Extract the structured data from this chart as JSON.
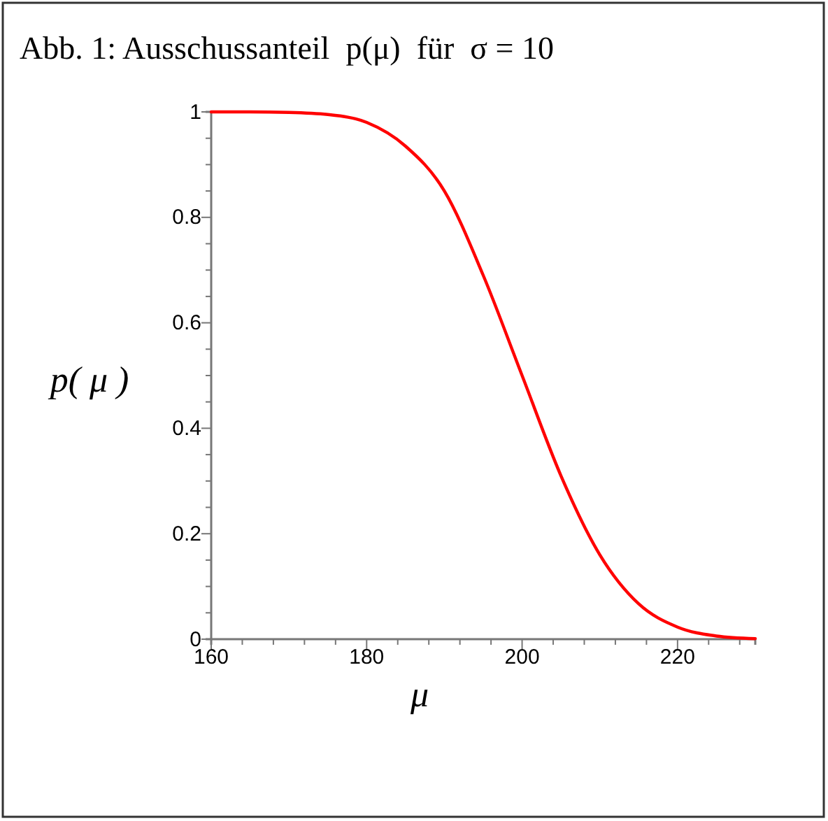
{
  "chart_data": {
    "type": "line",
    "title": "Abb. 1: Ausschussanteil  p(μ)  für  σ = 10",
    "xlabel": "μ",
    "ylabel": "p( μ )",
    "x": [
      160,
      165,
      170,
      175,
      180,
      185,
      190,
      195,
      200,
      205,
      210,
      215,
      220,
      225,
      230
    ],
    "series": [
      {
        "color": "#ff0000",
        "values": [
          1,
          1,
          0.999,
          0.995,
          0.98,
          0.935,
          0.85,
          0.69,
          0.5,
          0.31,
          0.16,
          0.067,
          0.023,
          0.006,
          0.001
        ]
      }
    ],
    "xlim": [
      160,
      230
    ],
    "xticks": [
      {
        "value": 160,
        "label": "160"
      },
      {
        "value": 164,
        "label": null
      },
      {
        "value": 168,
        "label": null
      },
      {
        "value": 172,
        "label": null
      },
      {
        "value": 176,
        "label": null
      },
      {
        "value": 180,
        "label": "180"
      },
      {
        "value": 184,
        "label": null
      },
      {
        "value": 188,
        "label": null
      },
      {
        "value": 192,
        "label": null
      },
      {
        "value": 196,
        "label": null
      },
      {
        "value": 200,
        "label": "200"
      },
      {
        "value": 204,
        "label": null
      },
      {
        "value": 208,
        "label": null
      },
      {
        "value": 212,
        "label": null
      },
      {
        "value": 216,
        "label": null
      },
      {
        "value": 220,
        "label": "220"
      },
      {
        "value": 224,
        "label": null
      },
      {
        "value": 228,
        "label": null
      }
    ],
    "ylim": [
      0,
      1
    ],
    "yticks": [
      0,
      {
        "value": 0.05,
        "label": null
      },
      {
        "value": 0.1,
        "label": null
      },
      {
        "value": 0.15,
        "label": null
      },
      {
        "value": 0.2,
        "label": "0.2"
      },
      {
        "value": 0.25,
        "label": null
      },
      {
        "value": 0.3,
        "label": null
      },
      {
        "value": 0.35,
        "label": null
      },
      {
        "value": 0.4,
        "label": "0.4"
      },
      {
        "value": 0.45,
        "label": null
      },
      {
        "value": 0.5,
        "label": null
      },
      {
        "value": 0.55,
        "label": null
      },
      {
        "value": 0.6,
        "label": "0.6"
      },
      {
        "value": 0.65,
        "label": null
      },
      {
        "value": 0.7,
        "label": null
      },
      {
        "value": 0.75,
        "label": null
      },
      {
        "value": 0.8,
        "label": "0.8"
      },
      {
        "value": 0.85,
        "label": null
      },
      {
        "value": 0.9,
        "label": null
      },
      {
        "value": 0.95,
        "label": null
      },
      1
    ],
    "grid": false,
    "marker": "none",
    "line_style": "solid"
  }
}
